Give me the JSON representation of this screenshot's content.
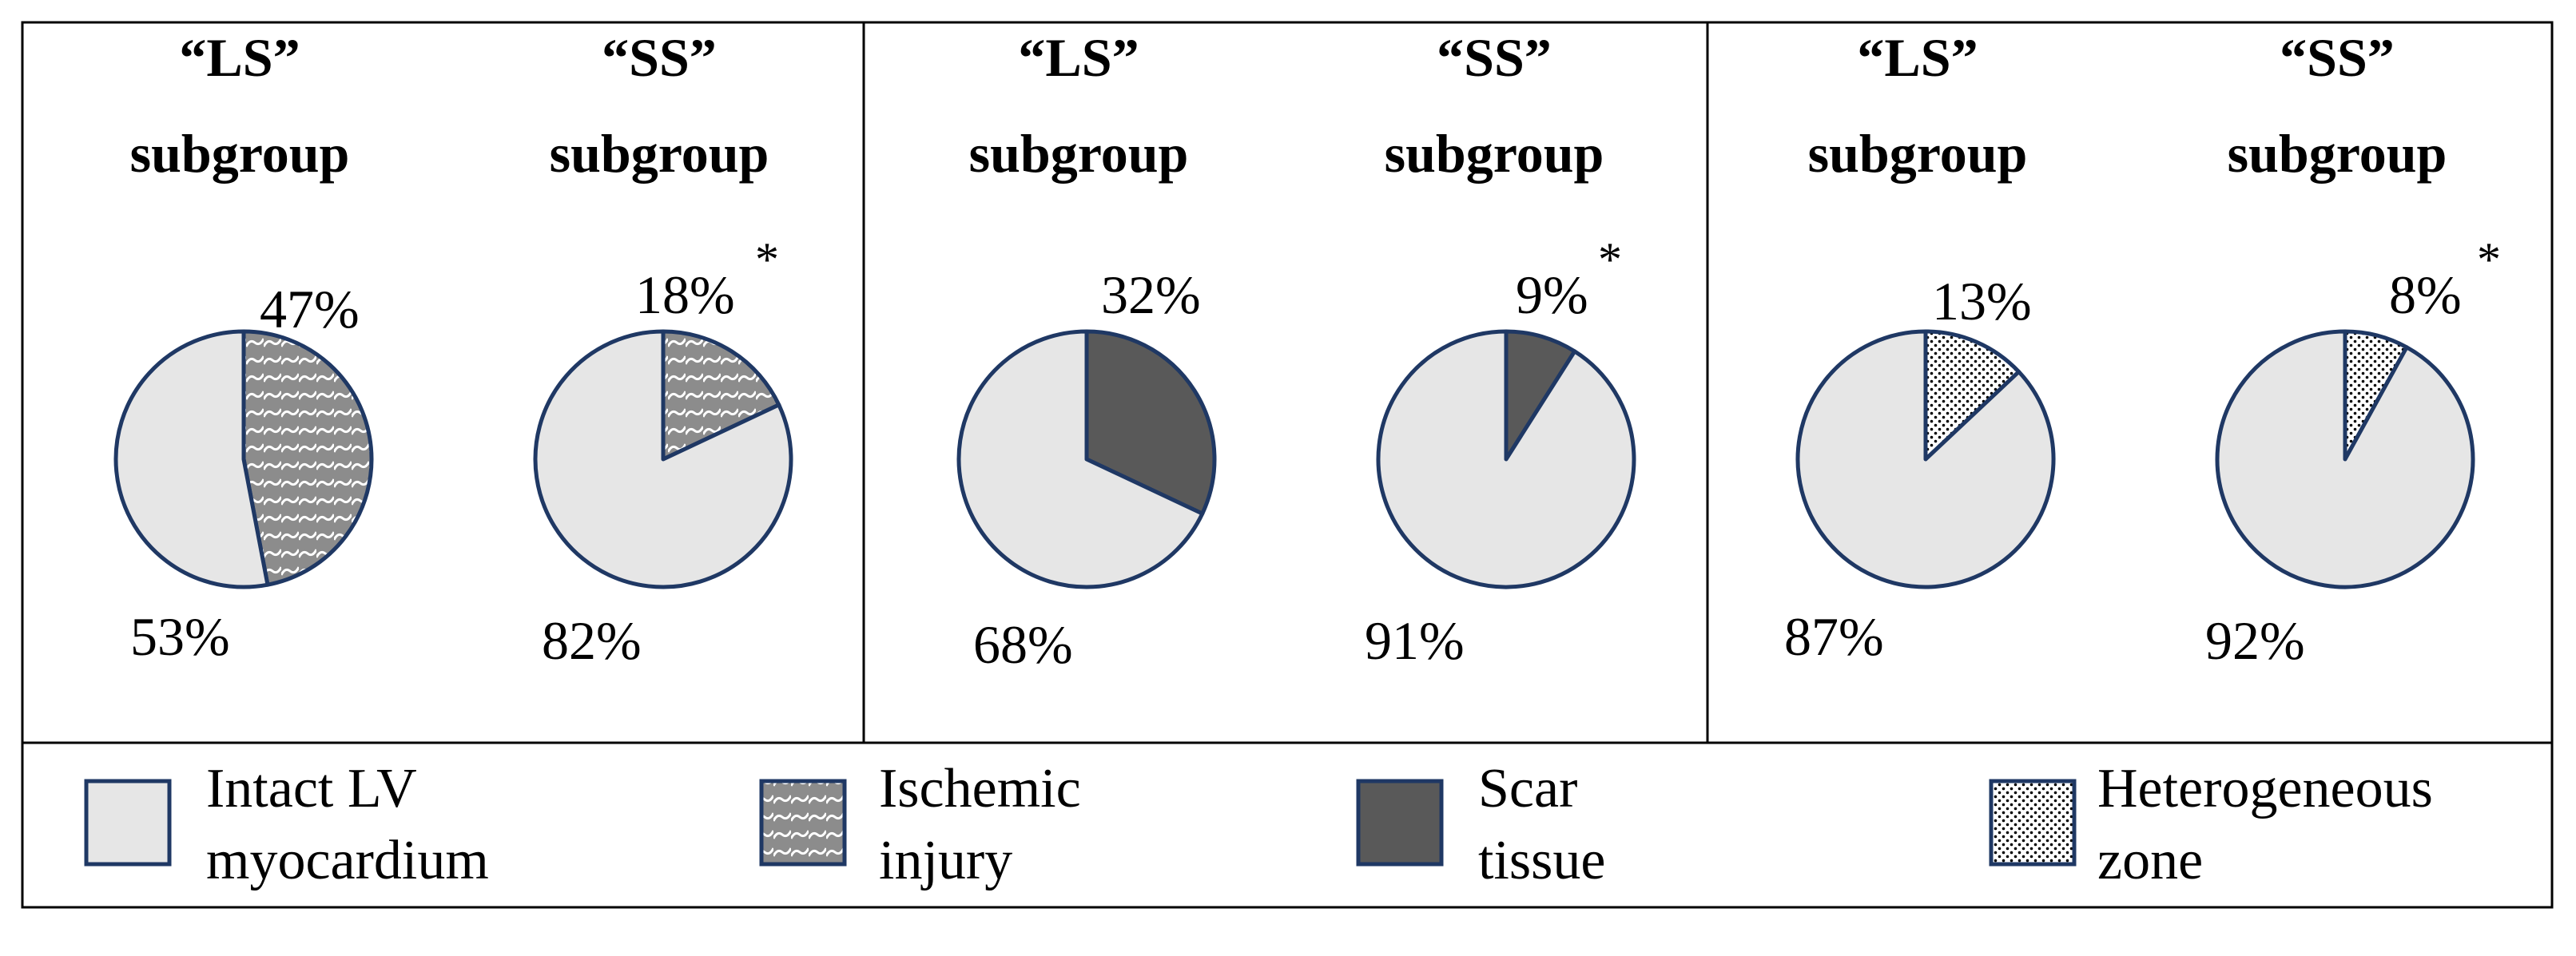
{
  "colors": {
    "intact_fill": "#e6e6e6",
    "outline": "#1f3864",
    "ischemic_bg": "#8c8c8c",
    "scar_fill": "#595959",
    "hetero_dot": "#000000"
  },
  "chart_data": [
    {
      "type": "pie",
      "header": [
        "“LS”",
        "subgroup"
      ],
      "slices": [
        {
          "label": "Ischemic injury",
          "value": 47,
          "display": "47%",
          "pattern": "ischemic"
        },
        {
          "label": "Intact LV myocardium",
          "value": 53,
          "display": "53%",
          "pattern": "intact"
        }
      ],
      "asterisk": ""
    },
    {
      "type": "pie",
      "header": [
        "“SS”",
        "subgroup"
      ],
      "slices": [
        {
          "label": "Ischemic injury",
          "value": 18,
          "display": "18%",
          "pattern": "ischemic"
        },
        {
          "label": "Intact LV myocardium",
          "value": 82,
          "display": "82%",
          "pattern": "intact"
        }
      ],
      "asterisk": "*"
    },
    {
      "type": "pie",
      "header": [
        "“LS”",
        "subgroup"
      ],
      "slices": [
        {
          "label": "Scar tissue",
          "value": 32,
          "display": "32%",
          "pattern": "scar"
        },
        {
          "label": "Intact LV myocardium",
          "value": 68,
          "display": "68%",
          "pattern": "intact"
        }
      ],
      "asterisk": ""
    },
    {
      "type": "pie",
      "header": [
        "“SS”",
        "subgroup"
      ],
      "slices": [
        {
          "label": "Scar tissue",
          "value": 9,
          "display": "9%",
          "pattern": "scar"
        },
        {
          "label": "Intact LV myocardium",
          "value": 91,
          "display": "91%",
          "pattern": "intact"
        }
      ],
      "asterisk": "*"
    },
    {
      "type": "pie",
      "header": [
        "“LS”",
        "subgroup"
      ],
      "slices": [
        {
          "label": "Heterogeneous zone",
          "value": 13,
          "display": "13%",
          "pattern": "hetero"
        },
        {
          "label": "Intact LV myocardium",
          "value": 87,
          "display": "87%",
          "pattern": "intact"
        }
      ],
      "asterisk": ""
    },
    {
      "type": "pie",
      "header": [
        "“SS”",
        "subgroup"
      ],
      "slices": [
        {
          "label": "Heterogeneous zone",
          "value": 8,
          "display": "8%",
          "pattern": "hetero"
        },
        {
          "label": "Intact LV myocardium",
          "value": 92,
          "display": "92%",
          "pattern": "intact"
        }
      ],
      "asterisk": "*"
    }
  ],
  "legend": [
    {
      "lines": [
        "Intact LV",
        "myocardium"
      ],
      "pattern": "intact"
    },
    {
      "lines": [
        "Ischemic",
        "injury"
      ],
      "pattern": "ischemic"
    },
    {
      "lines": [
        "Scar",
        "tissue"
      ],
      "pattern": "scar"
    },
    {
      "lines": [
        "Heterogeneous",
        "zone"
      ],
      "pattern": "hetero"
    }
  ]
}
